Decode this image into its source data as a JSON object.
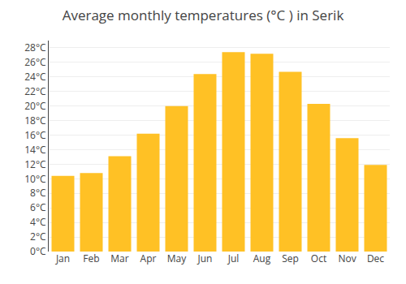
{
  "chart_data": {
    "type": "bar",
    "title": "Average monthly temperatures (°C ) in Serik",
    "categories": [
      "Jan",
      "Feb",
      "Mar",
      "Apr",
      "May",
      "Jun",
      "Jul",
      "Aug",
      "Sep",
      "Oct",
      "Nov",
      "Dec"
    ],
    "values": [
      10.4,
      10.8,
      13.1,
      16.2,
      20.0,
      24.4,
      27.4,
      27.2,
      24.7,
      20.3,
      15.6,
      11.9
    ],
    "color": "#FFC125",
    "ylim": [
      0,
      29
    ],
    "yticks": [
      {
        "value": 0,
        "label": "0°C"
      },
      {
        "value": 2,
        "label": "2°C"
      },
      {
        "value": 4,
        "label": "4°C"
      },
      {
        "value": 6,
        "label": "6°C"
      },
      {
        "value": 8,
        "label": "8°C"
      },
      {
        "value": 10,
        "label": "10°C"
      },
      {
        "value": 12,
        "label": "12°C"
      },
      {
        "value": 14,
        "label": "14°C"
      },
      {
        "value": 16,
        "label": "16°C"
      },
      {
        "value": 18,
        "label": "18°C"
      },
      {
        "value": 20,
        "label": "20°C"
      },
      {
        "value": 22,
        "label": "22°C"
      },
      {
        "value": 24,
        "label": "24°C"
      },
      {
        "value": 26,
        "label": "26°C"
      },
      {
        "value": 28,
        "label": "28°C"
      }
    ],
    "grid": true
  }
}
